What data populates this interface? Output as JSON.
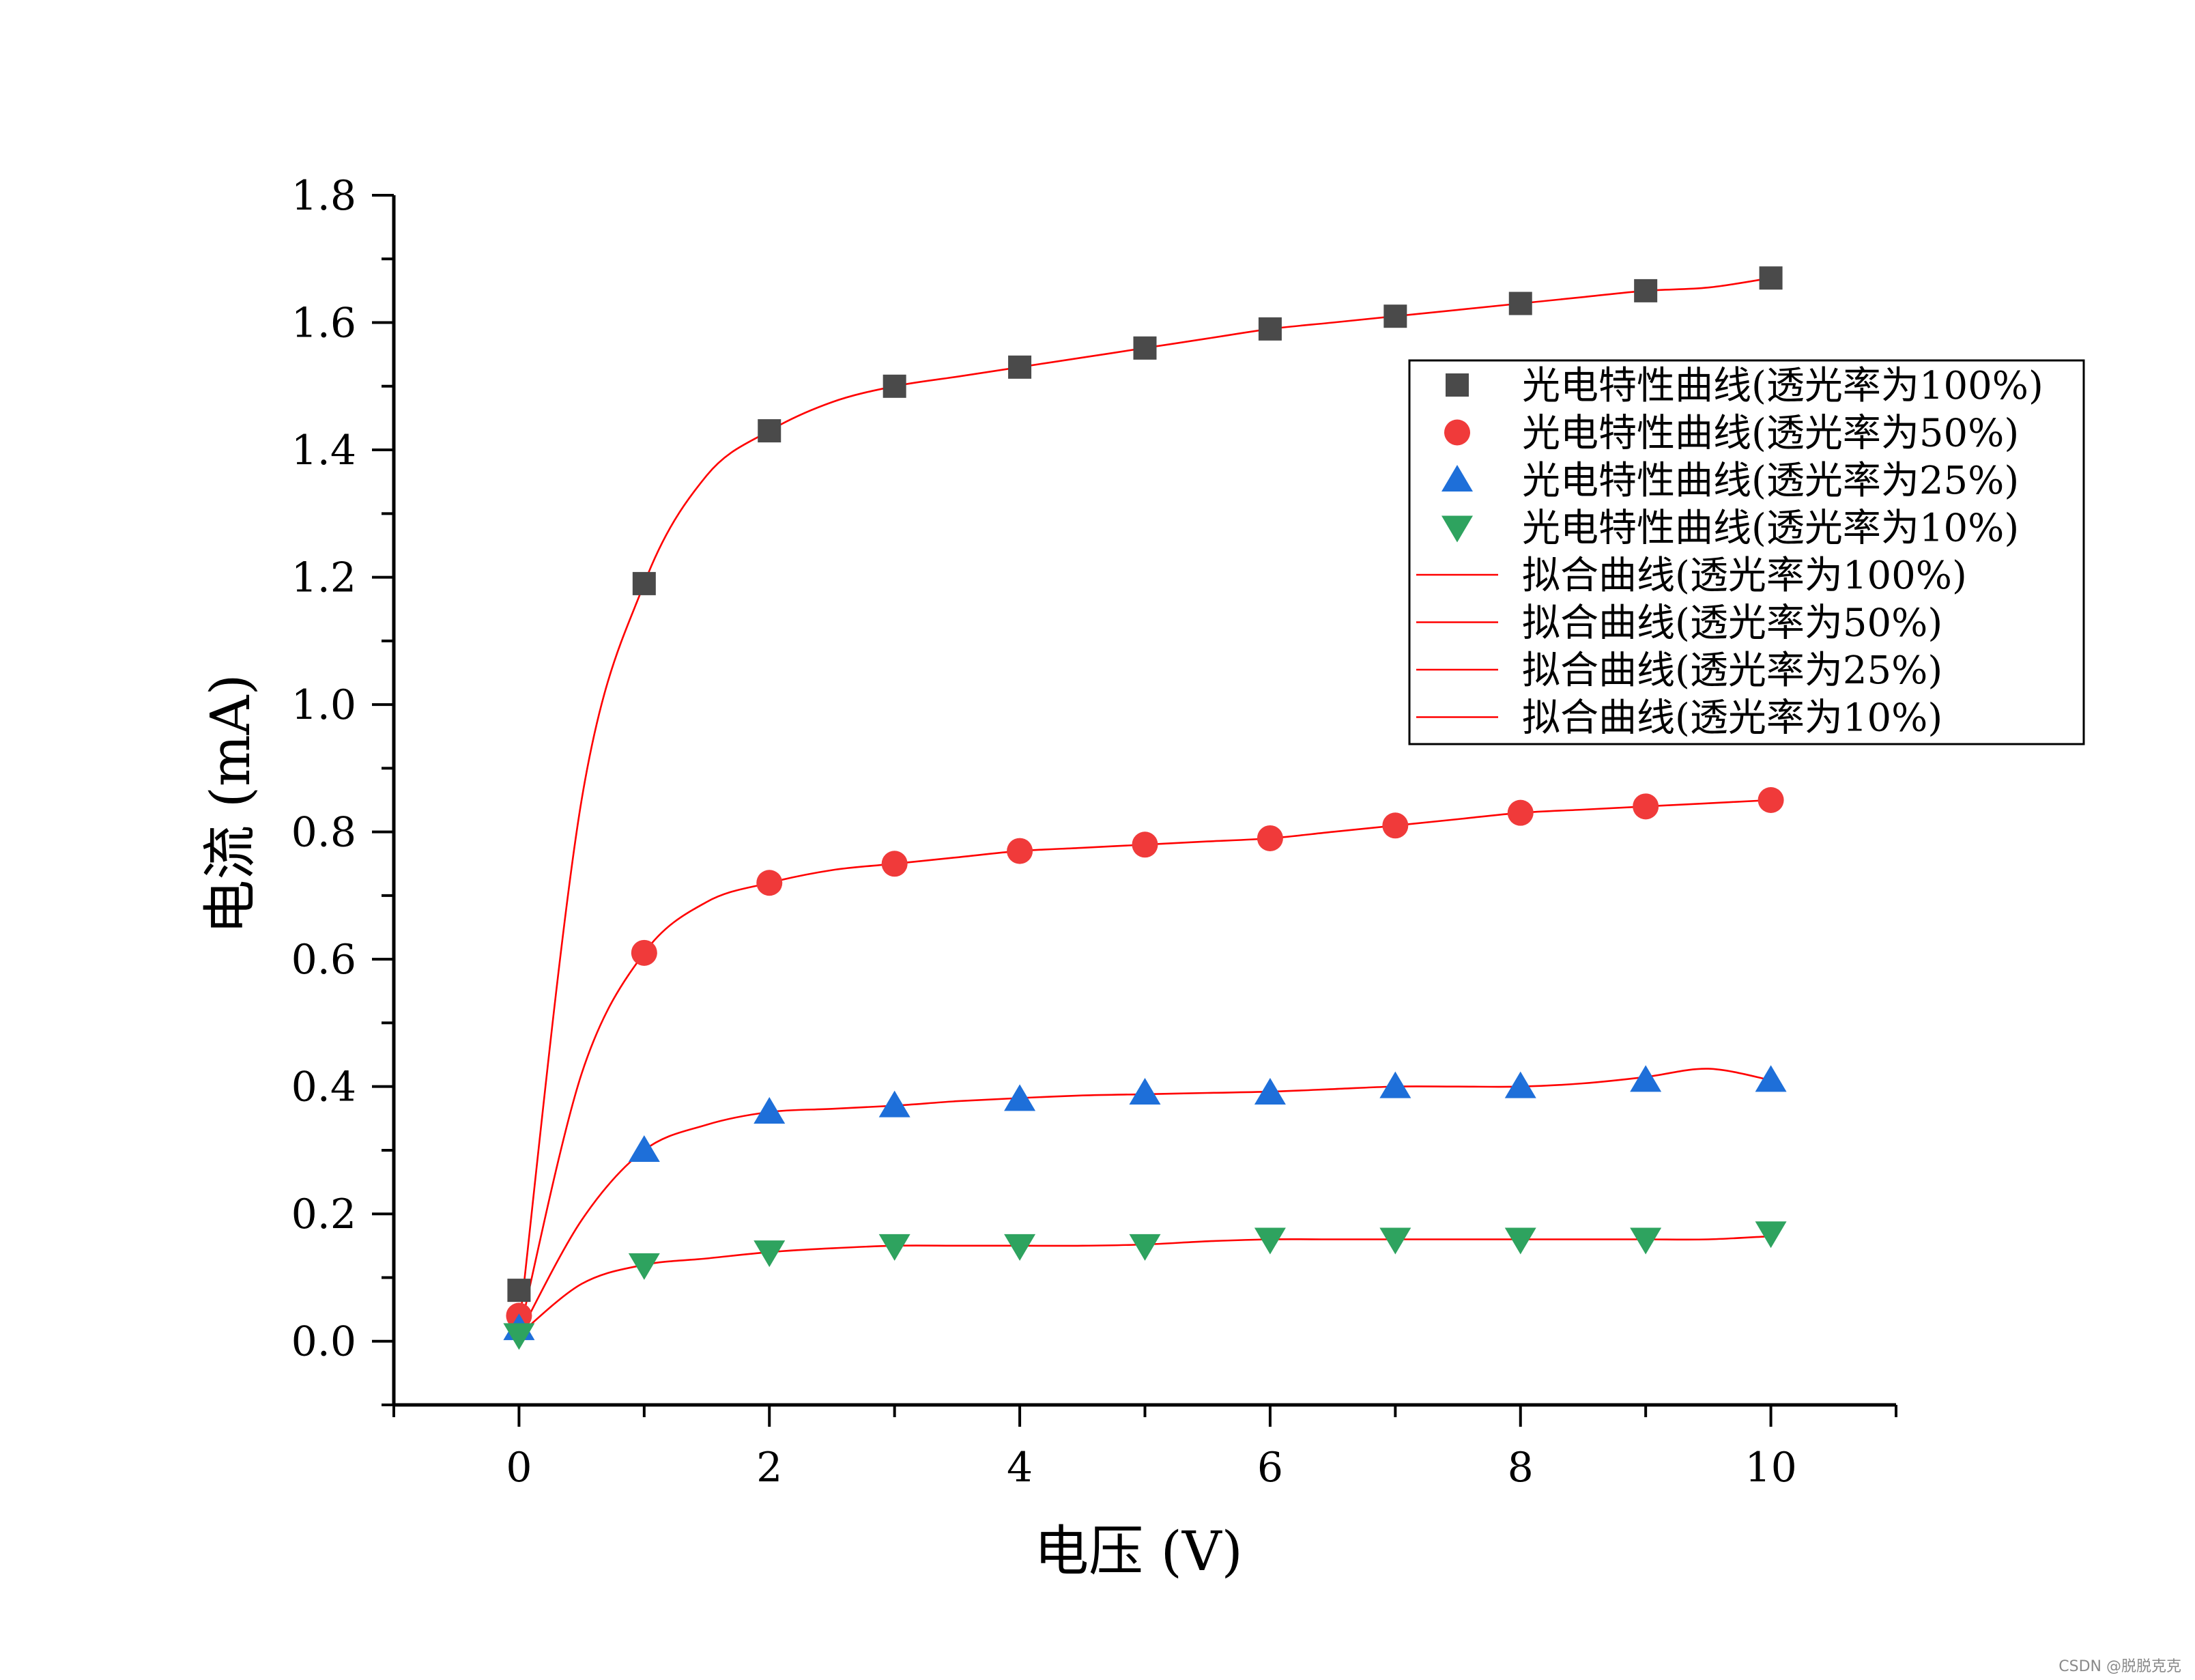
{
  "chart_data": {
    "type": "scatter",
    "xlabel": "电压 (V)",
    "ylabel": "电流 (mA)",
    "xlim": [
      -1,
      11
    ],
    "ylim": [
      -0.1,
      1.8
    ],
    "x_ticks": [
      "0",
      "2",
      "4",
      "6",
      "8",
      "10"
    ],
    "y_ticks": [
      "0.0",
      "0.2",
      "0.4",
      "0.6",
      "0.8",
      "1.0",
      "1.2",
      "1.4",
      "1.6",
      "1.8"
    ],
    "x": [
      0,
      1,
      2,
      3,
      4,
      5,
      6,
      7,
      8,
      9,
      10
    ],
    "series": [
      {
        "name": "光电特性曲线(透光率为100%)",
        "marker": "square",
        "color": "#4a4a4a",
        "values": [
          0.08,
          1.19,
          1.43,
          1.5,
          1.53,
          1.56,
          1.59,
          1.61,
          1.63,
          1.65,
          1.67
        ]
      },
      {
        "name": "光电特性曲线(透光率为50%)",
        "marker": "circle",
        "color": "#f03a3a",
        "values": [
          0.04,
          0.61,
          0.72,
          0.75,
          0.77,
          0.78,
          0.79,
          0.81,
          0.83,
          0.84,
          0.85
        ]
      },
      {
        "name": "光电特性曲线(透光率为25%)",
        "marker": "triangle-up",
        "color": "#1e6fd9",
        "values": [
          0.02,
          0.3,
          0.36,
          0.37,
          0.38,
          0.39,
          0.39,
          0.4,
          0.4,
          0.41,
          0.41
        ]
      },
      {
        "name": "光电特性曲线(透光率为10%)",
        "marker": "triangle-down",
        "color": "#2ea35f",
        "values": [
          0.01,
          0.12,
          0.14,
          0.15,
          0.15,
          0.15,
          0.16,
          0.16,
          0.16,
          0.16,
          0.17
        ]
      }
    ],
    "fits": [
      {
        "name": "拟合曲线(透光率为100%)",
        "color": "#ff0000",
        "points": [
          [
            0,
            0.02
          ],
          [
            0.5,
            0.85
          ],
          [
            1,
            1.19
          ],
          [
            1.5,
            1.36
          ],
          [
            2,
            1.43
          ],
          [
            2.5,
            1.475
          ],
          [
            3,
            1.5
          ],
          [
            3.5,
            1.515
          ],
          [
            4,
            1.53
          ],
          [
            4.5,
            1.545
          ],
          [
            5,
            1.56
          ],
          [
            5.5,
            1.575
          ],
          [
            6,
            1.59
          ],
          [
            6.5,
            1.6
          ],
          [
            7,
            1.61
          ],
          [
            7.5,
            1.62
          ],
          [
            8,
            1.63
          ],
          [
            8.5,
            1.64
          ],
          [
            9,
            1.65
          ],
          [
            9.5,
            1.655
          ],
          [
            10,
            1.67
          ]
        ]
      },
      {
        "name": "拟合曲线(透光率为50%)",
        "color": "#ff0000",
        "points": [
          [
            0,
            0.01
          ],
          [
            0.5,
            0.42
          ],
          [
            1,
            0.61
          ],
          [
            1.5,
            0.69
          ],
          [
            2,
            0.72
          ],
          [
            2.5,
            0.74
          ],
          [
            3,
            0.75
          ],
          [
            3.5,
            0.76
          ],
          [
            4,
            0.77
          ],
          [
            4.5,
            0.775
          ],
          [
            5,
            0.78
          ],
          [
            5.5,
            0.785
          ],
          [
            6,
            0.79
          ],
          [
            6.5,
            0.8
          ],
          [
            7,
            0.81
          ],
          [
            7.5,
            0.82
          ],
          [
            8,
            0.83
          ],
          [
            8.5,
            0.835
          ],
          [
            9,
            0.84
          ],
          [
            9.5,
            0.845
          ],
          [
            10,
            0.85
          ]
        ]
      },
      {
        "name": "拟合曲线(透光率为25%)",
        "color": "#ff0000",
        "points": [
          [
            0,
            0.01
          ],
          [
            0.5,
            0.19
          ],
          [
            1,
            0.3
          ],
          [
            1.5,
            0.34
          ],
          [
            2,
            0.36
          ],
          [
            2.5,
            0.365
          ],
          [
            3,
            0.37
          ],
          [
            3.5,
            0.377
          ],
          [
            4,
            0.382
          ],
          [
            4.5,
            0.386
          ],
          [
            5,
            0.388
          ],
          [
            5.5,
            0.39
          ],
          [
            6,
            0.392
          ],
          [
            6.5,
            0.396
          ],
          [
            7,
            0.4
          ],
          [
            7.5,
            0.4
          ],
          [
            8,
            0.4
          ],
          [
            8.5,
            0.405
          ],
          [
            9,
            0.415
          ],
          [
            9.5,
            0.428
          ],
          [
            10,
            0.41
          ]
        ]
      },
      {
        "name": "拟合曲线(透光率为10%)",
        "color": "#ff0000",
        "points": [
          [
            0,
            0.01
          ],
          [
            0.5,
            0.09
          ],
          [
            1,
            0.12
          ],
          [
            1.5,
            0.13
          ],
          [
            2,
            0.14
          ],
          [
            2.5,
            0.146
          ],
          [
            3,
            0.15
          ],
          [
            3.5,
            0.15
          ],
          [
            4,
            0.15
          ],
          [
            4.5,
            0.15
          ],
          [
            5,
            0.152
          ],
          [
            5.5,
            0.157
          ],
          [
            6,
            0.16
          ],
          [
            6.5,
            0.16
          ],
          [
            7,
            0.16
          ],
          [
            7.5,
            0.16
          ],
          [
            8,
            0.16
          ],
          [
            8.5,
            0.16
          ],
          [
            9,
            0.16
          ],
          [
            9.5,
            0.16
          ],
          [
            10,
            0.165
          ]
        ]
      }
    ],
    "legend": "top-right",
    "grid": false
  },
  "watermark": "CSDN @脱脱克克"
}
